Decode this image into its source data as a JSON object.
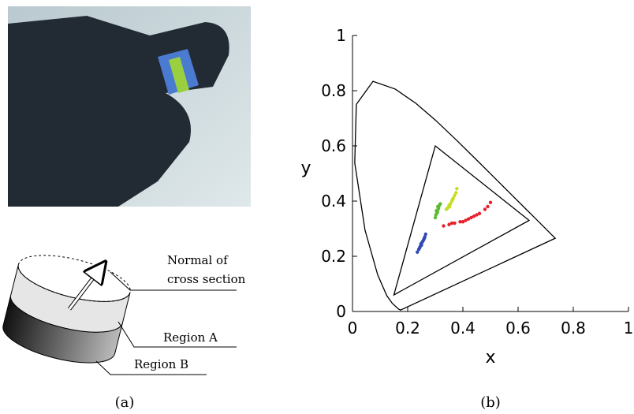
{
  "panel_a": {
    "caption": "(a)",
    "diagram": {
      "normal_label": [
        "Normal of",
        "cross section"
      ],
      "region_a": "Region A",
      "region_b": "Region B"
    }
  },
  "chart_data": {
    "type": "scatter",
    "caption": "(b)",
    "xlabel": "x",
    "ylabel": "y",
    "xlim": [
      0,
      1
    ],
    "ylim": [
      0,
      1
    ],
    "xticks": [
      0,
      0.2,
      0.4,
      0.6,
      0.8,
      1
    ],
    "yticks": [
      0,
      0.2,
      0.4,
      0.6,
      0.8,
      1
    ],
    "lines": [
      {
        "color": "#000000",
        "closed": true,
        "x": [
          0.1741,
          0.1666,
          0.144,
          0.1241,
          0.0913,
          0.0454,
          0.0082,
          0.0139,
          0.0743,
          0.1547,
          0.2296,
          0.3016,
          0.3731,
          0.4441,
          0.5125,
          0.5752,
          0.627,
          0.6658,
          0.6915,
          0.7347
        ],
        "y": [
          0.005,
          0.0089,
          0.0297,
          0.0578,
          0.1327,
          0.295,
          0.5384,
          0.7502,
          0.8338,
          0.8059,
          0.7543,
          0.6923,
          0.6245,
          0.5547,
          0.4866,
          0.4242,
          0.3725,
          0.334,
          0.3083,
          0.2653
        ]
      },
      {
        "color": "#000000",
        "closed": true,
        "x": [
          0.3,
          0.64,
          0.15
        ],
        "y": [
          0.6,
          0.33,
          0.06
        ]
      }
    ],
    "series": [
      {
        "color": "#2e49b5",
        "x": [
          0.235,
          0.24,
          0.245,
          0.25,
          0.252,
          0.255,
          0.26,
          0.262,
          0.265,
          0.243,
          0.248,
          0.258
        ],
        "y": [
          0.215,
          0.225,
          0.235,
          0.24,
          0.25,
          0.255,
          0.265,
          0.27,
          0.28,
          0.23,
          0.245,
          0.26
        ]
      },
      {
        "color": "#5bbb2f",
        "x": [
          0.3,
          0.302,
          0.305,
          0.308,
          0.31,
          0.312,
          0.315,
          0.318,
          0.304,
          0.309
        ],
        "y": [
          0.34,
          0.35,
          0.355,
          0.36,
          0.37,
          0.375,
          0.385,
          0.39,
          0.365,
          0.38
        ]
      },
      {
        "color": "#c8dc1e",
        "x": [
          0.34,
          0.345,
          0.35,
          0.355,
          0.36,
          0.365,
          0.37,
          0.375,
          0.378,
          0.352,
          0.362
        ],
        "y": [
          0.37,
          0.375,
          0.385,
          0.39,
          0.4,
          0.41,
          0.42,
          0.43,
          0.445,
          0.38,
          0.405
        ]
      },
      {
        "color": "#e8202a",
        "x": [
          0.33,
          0.35,
          0.37,
          0.39,
          0.41,
          0.42,
          0.43,
          0.44,
          0.45,
          0.46,
          0.48,
          0.49,
          0.36,
          0.4,
          0.5
        ],
        "y": [
          0.31,
          0.315,
          0.32,
          0.325,
          0.33,
          0.335,
          0.34,
          0.345,
          0.35,
          0.355,
          0.37,
          0.38,
          0.32,
          0.325,
          0.395
        ]
      }
    ]
  }
}
